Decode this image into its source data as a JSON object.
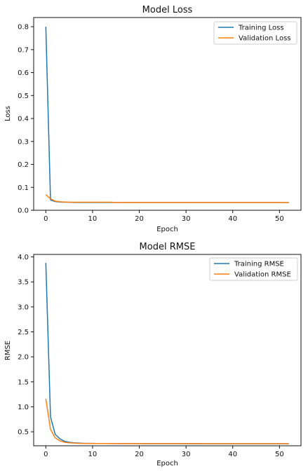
{
  "chart_data": [
    {
      "type": "line",
      "title": "Model Loss",
      "xlabel": "Epoch",
      "ylabel": "Loss",
      "xlim": [
        -2.6,
        54.6
      ],
      "ylim": [
        0,
        0.84
      ],
      "xticks": [
        0,
        10,
        20,
        30,
        40,
        50
      ],
      "yticks": [
        0.0,
        0.1,
        0.2,
        0.3,
        0.4,
        0.5,
        0.6,
        0.7,
        0.8
      ],
      "ytick_labels": [
        "0.0",
        "0.1",
        "0.2",
        "0.3",
        "0.4",
        "0.5",
        "0.6",
        "0.7",
        "0.8"
      ],
      "legend_position": "top-right",
      "grid": false,
      "x": [
        0,
        1,
        2,
        3,
        4,
        5,
        6,
        7,
        8,
        9,
        10,
        11,
        12,
        13,
        14,
        15,
        16,
        17,
        18,
        19,
        20,
        21,
        22,
        23,
        24,
        25,
        26,
        27,
        28,
        29,
        30,
        31,
        32,
        33,
        34,
        35,
        36,
        37,
        38,
        39,
        40,
        41,
        42,
        43,
        44,
        45,
        46,
        47,
        48,
        49,
        50,
        51,
        52
      ],
      "series": [
        {
          "name": "Training Loss",
          "color": "#1f77b4",
          "values": [
            0.8,
            0.045,
            0.038,
            0.036,
            0.035,
            0.035,
            0.034,
            0.034,
            0.034,
            0.034,
            0.034,
            0.034,
            0.034,
            0.034,
            0.034,
            0.034,
            0.034,
            0.034,
            0.034,
            0.034,
            0.034,
            0.034,
            0.034,
            0.034,
            0.034,
            0.034,
            0.034,
            0.034,
            0.034,
            0.034,
            0.034,
            0.034,
            0.034,
            0.034,
            0.034,
            0.034,
            0.034,
            0.034,
            0.034,
            0.034,
            0.034,
            0.034,
            0.034,
            0.034,
            0.034,
            0.034,
            0.034,
            0.034,
            0.034,
            0.034,
            0.034,
            0.034,
            0.034
          ]
        },
        {
          "name": "Validation Loss",
          "color": "#ff7f0e",
          "values": [
            0.068,
            0.05,
            0.04,
            0.037,
            0.036,
            0.035,
            0.035,
            0.035,
            0.035,
            0.035,
            0.035,
            0.035,
            0.035,
            0.035,
            0.035,
            0.034,
            0.034,
            0.034,
            0.034,
            0.034,
            0.034,
            0.034,
            0.034,
            0.034,
            0.034,
            0.034,
            0.034,
            0.034,
            0.034,
            0.034,
            0.034,
            0.034,
            0.034,
            0.034,
            0.034,
            0.034,
            0.034,
            0.034,
            0.034,
            0.034,
            0.034,
            0.034,
            0.034,
            0.034,
            0.034,
            0.034,
            0.034,
            0.034,
            0.034,
            0.034,
            0.034,
            0.034,
            0.034
          ]
        }
      ]
    },
    {
      "type": "line",
      "title": "Model RMSE",
      "xlabel": "Epoch",
      "ylabel": "RMSE",
      "xlim": [
        -2.6,
        54.6
      ],
      "ylim": [
        0.22,
        4.05
      ],
      "xticks": [
        0,
        10,
        20,
        30,
        40,
        50
      ],
      "yticks": [
        0.5,
        1.0,
        1.5,
        2.0,
        2.5,
        3.0,
        3.5,
        4.0
      ],
      "ytick_labels": [
        "0.5",
        "1.0",
        "1.5",
        "2.0",
        "2.5",
        "3.0",
        "3.5",
        "4.0"
      ],
      "legend_position": "top-right",
      "grid": false,
      "x": [
        0,
        1,
        2,
        3,
        4,
        5,
        6,
        7,
        8,
        9,
        10,
        11,
        12,
        13,
        14,
        15,
        16,
        17,
        18,
        19,
        20,
        21,
        22,
        23,
        24,
        25,
        26,
        27,
        28,
        29,
        30,
        31,
        32,
        33,
        34,
        35,
        36,
        37,
        38,
        39,
        40,
        41,
        42,
        43,
        44,
        45,
        46,
        47,
        48,
        49,
        50,
        51,
        52
      ],
      "series": [
        {
          "name": "Training RMSE",
          "color": "#1f77b4",
          "values": [
            3.88,
            0.8,
            0.45,
            0.36,
            0.31,
            0.29,
            0.28,
            0.275,
            0.27,
            0.268,
            0.267,
            0.266,
            0.265,
            0.265,
            0.264,
            0.264,
            0.264,
            0.263,
            0.263,
            0.263,
            0.263,
            0.262,
            0.262,
            0.262,
            0.262,
            0.262,
            0.262,
            0.262,
            0.262,
            0.261,
            0.261,
            0.261,
            0.261,
            0.261,
            0.261,
            0.261,
            0.261,
            0.261,
            0.261,
            0.261,
            0.261,
            0.261,
            0.26,
            0.26,
            0.26,
            0.26,
            0.26,
            0.26,
            0.26,
            0.26,
            0.26,
            0.26,
            0.26
          ]
        },
        {
          "name": "Validation RMSE",
          "color": "#ff7f0e",
          "values": [
            1.16,
            0.55,
            0.38,
            0.32,
            0.29,
            0.28,
            0.275,
            0.27,
            0.268,
            0.267,
            0.266,
            0.266,
            0.265,
            0.265,
            0.265,
            0.265,
            0.264,
            0.264,
            0.264,
            0.264,
            0.264,
            0.264,
            0.263,
            0.263,
            0.263,
            0.263,
            0.263,
            0.263,
            0.263,
            0.263,
            0.263,
            0.263,
            0.263,
            0.263,
            0.262,
            0.262,
            0.262,
            0.262,
            0.262,
            0.262,
            0.262,
            0.262,
            0.262,
            0.262,
            0.262,
            0.262,
            0.262,
            0.262,
            0.262,
            0.262,
            0.262,
            0.262,
            0.262
          ]
        }
      ]
    }
  ]
}
